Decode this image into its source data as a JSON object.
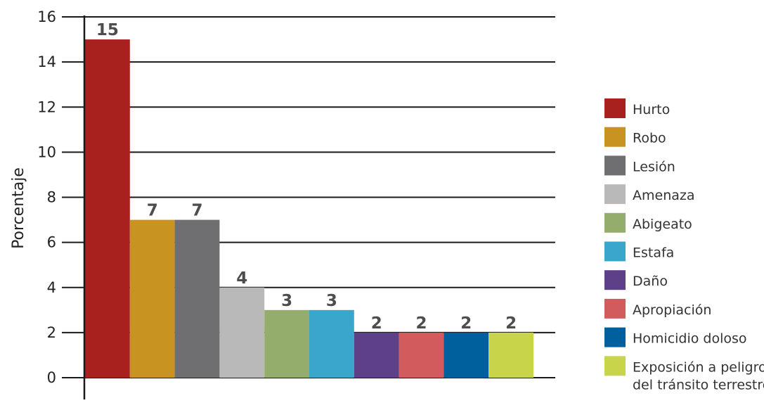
{
  "chart_data": {
    "type": "bar",
    "ylabel": "Porcentaje",
    "ylim": [
      0,
      16
    ],
    "yticks": [
      0,
      2,
      4,
      6,
      8,
      10,
      12,
      14,
      16
    ],
    "grid": true,
    "legend_position": "right",
    "categories": [
      "Hurto",
      "Robo",
      "Lesión",
      "Amenaza",
      "Abigeato",
      "Estafa",
      "Daño",
      "Apropiación",
      "Homicidio doloso",
      "Exposición a peligro del tránsito terrestre"
    ],
    "values": [
      15,
      7,
      7,
      4,
      3,
      3,
      2,
      2,
      2,
      2
    ],
    "data_labels": [
      "15",
      "7",
      "7",
      "4",
      "3",
      "3",
      "2",
      "2",
      "2",
      "2"
    ],
    "colors": [
      "#a8211f",
      "#c89320",
      "#6f6e70",
      "#b9b9b9",
      "#94ac6c",
      "#3aa6cc",
      "#5e4088",
      "#d15c5e",
      "#00609e",
      "#c8d54b"
    ],
    "legend": [
      {
        "lines": [
          "Hurto"
        ]
      },
      {
        "lines": [
          "Robo"
        ]
      },
      {
        "lines": [
          "Lesión"
        ]
      },
      {
        "lines": [
          "Amenaza"
        ]
      },
      {
        "lines": [
          "Abigeato"
        ]
      },
      {
        "lines": [
          "Estafa"
        ]
      },
      {
        "lines": [
          "Daño"
        ]
      },
      {
        "lines": [
          "Apropiación"
        ]
      },
      {
        "lines": [
          "Homicidio doloso"
        ]
      },
      {
        "lines": [
          "Exposición a peligro",
          "del tránsito terrestre"
        ]
      }
    ]
  }
}
